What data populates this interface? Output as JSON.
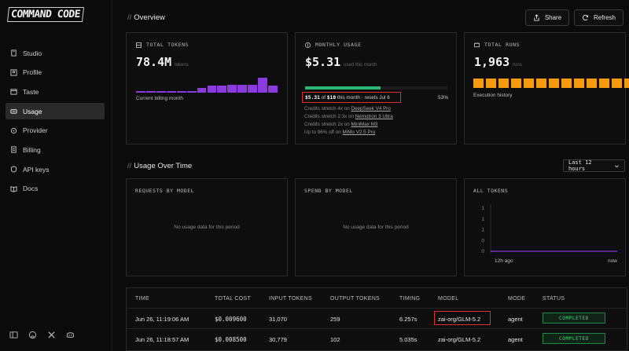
{
  "app": {
    "logo": "COMMAND CODE"
  },
  "sidebar": {
    "items": [
      {
        "label": "Studio",
        "icon": "studio-icon"
      },
      {
        "label": "Profile",
        "icon": "profile-icon"
      },
      {
        "label": "Taste",
        "icon": "taste-icon"
      },
      {
        "label": "Usage",
        "icon": "usage-icon",
        "active": true
      },
      {
        "label": "Provider",
        "icon": "provider-icon"
      },
      {
        "label": "Billing",
        "icon": "billing-icon"
      },
      {
        "label": "API keys",
        "icon": "key-icon"
      },
      {
        "label": "Docs",
        "icon": "docs-icon"
      }
    ],
    "footer_icons": [
      "sidebar-toggle-icon",
      "github-icon",
      "x-icon",
      "discord-icon"
    ]
  },
  "overview": {
    "title": "Overview",
    "share_label": "Share",
    "refresh_label": "Refresh",
    "total_tokens": {
      "label": "TOTAL TOKENS",
      "value": "78.4M",
      "unit": "tokens",
      "note": "Current billing month",
      "bar_levels": [
        0.08,
        0.08,
        0.08,
        0.08,
        0.08,
        0.1,
        0.3,
        0.45,
        0.5,
        0.55,
        0.55,
        0.55,
        1.0,
        0.45
      ],
      "bar_color": "#8b3ae0"
    },
    "monthly_usage": {
      "label": "MONTHLY USAGE",
      "value": "$5.31",
      "unit": "used this month",
      "progress": 0.53,
      "percent_label": "53%",
      "spent": "$5.31",
      "of_text": "of",
      "limit": "$10",
      "tail": "this month · resets Jul 6",
      "credits": [
        {
          "prefix": "Credits stretch 4x on",
          "model": "DeepSeek V4 Pro"
        },
        {
          "prefix": "Credits stretch 2.3x on",
          "model": "Nemotron 3 Ultra"
        },
        {
          "prefix": "Credits stretch 2x on",
          "model": "MiniMax M3"
        },
        {
          "prefix": "Up to 96% off on",
          "model": "MiMo V2.5 Pro"
        }
      ],
      "progress_color": "#2bb673"
    },
    "total_runs": {
      "label": "TOTAL RUNS",
      "value": "1,963",
      "unit": "runs",
      "note": "Execution history",
      "run_blocks": 14,
      "block_color": "#f39c12"
    }
  },
  "usage_over_time": {
    "title": "Usage Over Time",
    "range": "Last 12 hours",
    "panels": [
      {
        "title": "REQUESTS BY MODEL",
        "empty": "No usage data for this period"
      },
      {
        "title": "SPEND BY MODEL",
        "empty": "No usage data for this period"
      }
    ],
    "all_tokens": {
      "title": "ALL TOKENS",
      "y_ticks": [
        "1",
        "1",
        "1",
        "0",
        "0"
      ],
      "x_ticks": [
        "12h ago",
        "now"
      ],
      "line_color": "#8b3ae0"
    }
  },
  "table": {
    "headers": [
      "TIME",
      "TOTAL COST",
      "INPUT TOKENS",
      "OUTPUT TOKENS",
      "TIMING",
      "MODEL",
      "MODE",
      "STATUS"
    ],
    "rows": [
      {
        "time": "Jun 26, 11:19:06 AM",
        "cost": "$0.009600",
        "input": "31,070",
        "output": "259",
        "timing": "6.257s",
        "model": "zai-org/GLM-5.2",
        "mode": "agent",
        "status": "COMPLETED"
      },
      {
        "time": "Jun 26, 11:18:57 AM",
        "cost": "$0.008500",
        "input": "30,779",
        "output": "102",
        "timing": "5.035s",
        "model": "zai-org/GLM-5.2",
        "mode": "agent",
        "status": "COMPLETED"
      }
    ]
  }
}
